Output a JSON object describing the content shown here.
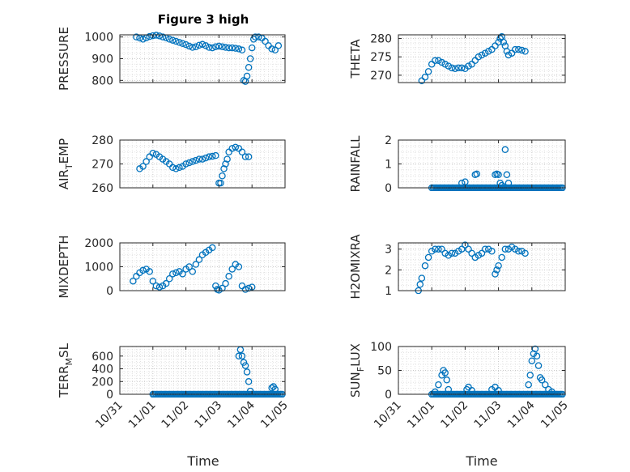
{
  "chart_data": {
    "type": "scatter",
    "title": "Figure 3 high",
    "xlabel": "Time",
    "x_ticks": [
      "10/31",
      "11/01",
      "11/02",
      "11/03",
      "11/04",
      "11/05"
    ],
    "xlim": [
      "10/31",
      "11/05"
    ],
    "grid": "major+minor dotted",
    "marker": "open circle",
    "color": "#0072BD",
    "panels": [
      {
        "id": "pressure",
        "ylabel": "PRESSURE",
        "ylabel_sub": "",
        "ylim": [
          790,
          1010
        ],
        "yticks": [
          800,
          900,
          1000
        ],
        "points": [
          [
            0.5,
            1000
          ],
          [
            0.6,
            995
          ],
          [
            0.7,
            990
          ],
          [
            0.8,
            996
          ],
          [
            0.9,
            1002
          ],
          [
            1.0,
            1006
          ],
          [
            1.1,
            1008
          ],
          [
            1.2,
            1005
          ],
          [
            1.3,
            1000
          ],
          [
            1.4,
            996
          ],
          [
            1.5,
            990
          ],
          [
            1.6,
            985
          ],
          [
            1.7,
            980
          ],
          [
            1.8,
            975
          ],
          [
            1.9,
            970
          ],
          [
            2.0,
            965
          ],
          [
            2.1,
            958
          ],
          [
            2.2,
            952
          ],
          [
            2.3,
            955
          ],
          [
            2.4,
            962
          ],
          [
            2.5,
            966
          ],
          [
            2.6,
            960
          ],
          [
            2.7,
            952
          ],
          [
            2.8,
            950
          ],
          [
            2.9,
            955
          ],
          [
            3.0,
            958
          ],
          [
            3.1,
            955
          ],
          [
            3.2,
            952
          ],
          [
            3.3,
            950
          ],
          [
            3.4,
            950
          ],
          [
            3.5,
            948
          ],
          [
            3.6,
            945
          ],
          [
            3.7,
            940
          ],
          [
            3.75,
            800
          ],
          [
            3.8,
            795
          ],
          [
            3.85,
            820
          ],
          [
            3.9,
            860
          ],
          [
            3.95,
            900
          ],
          [
            4.0,
            950
          ],
          [
            4.05,
            990
          ],
          [
            4.1,
            1000
          ],
          [
            4.2,
            1000
          ],
          [
            4.3,
            995
          ],
          [
            4.4,
            980
          ],
          [
            4.5,
            960
          ],
          [
            4.6,
            945
          ],
          [
            4.7,
            940
          ],
          [
            4.8,
            960
          ]
        ]
      },
      {
        "id": "theta",
        "ylabel": "THETA",
        "ylabel_sub": "",
        "ylim": [
          268,
          281
        ],
        "yticks": [
          270,
          275,
          280
        ],
        "points": [
          [
            0.7,
            268.5
          ],
          [
            0.8,
            269.5
          ],
          [
            0.9,
            271
          ],
          [
            1.0,
            273
          ],
          [
            1.1,
            274
          ],
          [
            1.2,
            274
          ],
          [
            1.3,
            273.5
          ],
          [
            1.4,
            273
          ],
          [
            1.5,
            272.5
          ],
          [
            1.6,
            272
          ],
          [
            1.7,
            271.8
          ],
          [
            1.8,
            272
          ],
          [
            1.9,
            272
          ],
          [
            2.0,
            271.8
          ],
          [
            2.1,
            272.5
          ],
          [
            2.2,
            273
          ],
          [
            2.3,
            274
          ],
          [
            2.4,
            275
          ],
          [
            2.5,
            275.5
          ],
          [
            2.6,
            276
          ],
          [
            2.7,
            276.5
          ],
          [
            2.8,
            277
          ],
          [
            2.9,
            278
          ],
          [
            3.0,
            279
          ],
          [
            3.05,
            280
          ],
          [
            3.1,
            280.5
          ],
          [
            3.15,
            279
          ],
          [
            3.2,
            278
          ],
          [
            3.25,
            276.5
          ],
          [
            3.3,
            275.5
          ],
          [
            3.4,
            276
          ],
          [
            3.5,
            277
          ],
          [
            3.6,
            277
          ],
          [
            3.7,
            276.8
          ],
          [
            3.8,
            276.5
          ]
        ]
      },
      {
        "id": "air_temp",
        "ylabel": "AIR",
        "ylabel_sub": "T",
        "ylabel_rest": "EMP",
        "ylim": [
          260,
          280
        ],
        "yticks": [
          260,
          270,
          280
        ],
        "points": [
          [
            0.6,
            268
          ],
          [
            0.7,
            269
          ],
          [
            0.8,
            271
          ],
          [
            0.9,
            273
          ],
          [
            1.0,
            274.5
          ],
          [
            1.1,
            274
          ],
          [
            1.2,
            273
          ],
          [
            1.3,
            272
          ],
          [
            1.4,
            271
          ],
          [
            1.5,
            270
          ],
          [
            1.6,
            268.5
          ],
          [
            1.7,
            268
          ],
          [
            1.8,
            268.5
          ],
          [
            1.9,
            269
          ],
          [
            2.0,
            270
          ],
          [
            2.1,
            270.5
          ],
          [
            2.2,
            271
          ],
          [
            2.3,
            271.5
          ],
          [
            2.4,
            272
          ],
          [
            2.5,
            272
          ],
          [
            2.6,
            272.5
          ],
          [
            2.7,
            273
          ],
          [
            2.8,
            273.2
          ],
          [
            2.9,
            273.5
          ],
          [
            3.0,
            262
          ],
          [
            3.05,
            262
          ],
          [
            3.1,
            265
          ],
          [
            3.15,
            268
          ],
          [
            3.2,
            270
          ],
          [
            3.25,
            272
          ],
          [
            3.3,
            275
          ],
          [
            3.4,
            276.5
          ],
          [
            3.5,
            277
          ],
          [
            3.6,
            276.5
          ],
          [
            3.7,
            275
          ],
          [
            3.8,
            273
          ],
          [
            3.9,
            273
          ]
        ]
      },
      {
        "id": "rainfall",
        "ylabel": "RAINFALL",
        "ylabel_sub": "",
        "ylim": [
          0,
          2
        ],
        "yticks": [
          0,
          1,
          2
        ],
        "baseline_zero": true,
        "points": [
          [
            1.9,
            0.2
          ],
          [
            2.0,
            0.25
          ],
          [
            2.3,
            0.55
          ],
          [
            2.35,
            0.58
          ],
          [
            2.9,
            0.55
          ],
          [
            2.95,
            0.58
          ],
          [
            3.0,
            0.55
          ],
          [
            3.05,
            0.2
          ],
          [
            3.1,
            0.1
          ],
          [
            3.2,
            1.6
          ],
          [
            3.25,
            0.55
          ],
          [
            3.3,
            0.2
          ]
        ]
      },
      {
        "id": "mixdepth",
        "ylabel": "MIXDEPTH",
        "ylabel_sub": "",
        "ylim": [
          0,
          2000
        ],
        "yticks": [
          0,
          1000,
          2000
        ],
        "points": [
          [
            0.4,
            400
          ],
          [
            0.5,
            600
          ],
          [
            0.6,
            750
          ],
          [
            0.7,
            850
          ],
          [
            0.8,
            900
          ],
          [
            0.9,
            800
          ],
          [
            1.0,
            400
          ],
          [
            1.1,
            200
          ],
          [
            1.2,
            150
          ],
          [
            1.3,
            200
          ],
          [
            1.4,
            300
          ],
          [
            1.5,
            500
          ],
          [
            1.6,
            700
          ],
          [
            1.7,
            750
          ],
          [
            1.8,
            800
          ],
          [
            1.9,
            700
          ],
          [
            2.0,
            900
          ],
          [
            2.1,
            1000
          ],
          [
            2.2,
            800
          ],
          [
            2.3,
            1100
          ],
          [
            2.4,
            1300
          ],
          [
            2.5,
            1500
          ],
          [
            2.6,
            1600
          ],
          [
            2.7,
            1700
          ],
          [
            2.8,
            1800
          ],
          [
            2.9,
            200
          ],
          [
            2.95,
            50
          ],
          [
            3.0,
            20
          ],
          [
            3.1,
            100
          ],
          [
            3.2,
            300
          ],
          [
            3.3,
            600
          ],
          [
            3.4,
            900
          ],
          [
            3.5,
            1100
          ],
          [
            3.6,
            1000
          ],
          [
            3.7,
            200
          ],
          [
            3.8,
            50
          ],
          [
            3.9,
            100
          ],
          [
            4.0,
            150
          ]
        ]
      },
      {
        "id": "h2omixra",
        "ylabel": "H2OMIXRA",
        "ylabel_sub": "",
        "ylim": [
          1,
          3.3
        ],
        "yticks": [
          1,
          2,
          3
        ],
        "points": [
          [
            0.6,
            1.0
          ],
          [
            0.65,
            1.3
          ],
          [
            0.7,
            1.6
          ],
          [
            0.8,
            2.2
          ],
          [
            0.9,
            2.6
          ],
          [
            1.0,
            2.9
          ],
          [
            1.1,
            3.0
          ],
          [
            1.2,
            3.0
          ],
          [
            1.3,
            3.0
          ],
          [
            1.4,
            2.8
          ],
          [
            1.5,
            2.7
          ],
          [
            1.6,
            2.8
          ],
          [
            1.7,
            2.8
          ],
          [
            1.8,
            2.9
          ],
          [
            1.9,
            3.0
          ],
          [
            2.0,
            3.2
          ],
          [
            2.1,
            3.0
          ],
          [
            2.2,
            2.8
          ],
          [
            2.3,
            2.6
          ],
          [
            2.4,
            2.7
          ],
          [
            2.5,
            2.8
          ],
          [
            2.6,
            3.0
          ],
          [
            2.7,
            3.0
          ],
          [
            2.8,
            2.9
          ],
          [
            2.9,
            1.8
          ],
          [
            2.95,
            2.0
          ],
          [
            3.0,
            2.2
          ],
          [
            3.1,
            2.6
          ],
          [
            3.2,
            3.0
          ],
          [
            3.3,
            3.0
          ],
          [
            3.4,
            3.1
          ],
          [
            3.5,
            3.0
          ],
          [
            3.6,
            2.9
          ],
          [
            3.7,
            2.9
          ],
          [
            3.8,
            2.8
          ]
        ]
      },
      {
        "id": "terr_msl",
        "ylabel": "TERR",
        "ylabel_sub": "M",
        "ylabel_rest": "SL",
        "ylim": [
          0,
          750
        ],
        "yticks": [
          0,
          200,
          400,
          600
        ],
        "baseline_zero": true,
        "points": [
          [
            3.6,
            600
          ],
          [
            3.65,
            700
          ],
          [
            3.7,
            600
          ],
          [
            3.75,
            500
          ],
          [
            3.8,
            450
          ],
          [
            3.85,
            350
          ],
          [
            3.9,
            200
          ],
          [
            3.95,
            50
          ],
          [
            4.6,
            100
          ],
          [
            4.65,
            120
          ],
          [
            4.7,
            80
          ]
        ]
      },
      {
        "id": "sun_flux",
        "ylabel": "SUN",
        "ylabel_sub": "F",
        "ylabel_rest": "LUX",
        "ylim": [
          0,
          100
        ],
        "yticks": [
          0,
          50,
          100
        ],
        "baseline_zero": true,
        "points": [
          [
            1.1,
            5
          ],
          [
            1.2,
            20
          ],
          [
            1.3,
            40
          ],
          [
            1.35,
            50
          ],
          [
            1.4,
            45
          ],
          [
            1.45,
            30
          ],
          [
            1.5,
            10
          ],
          [
            2.05,
            10
          ],
          [
            2.1,
            15
          ],
          [
            2.2,
            8
          ],
          [
            2.8,
            10
          ],
          [
            2.9,
            15
          ],
          [
            3.0,
            8
          ],
          [
            3.9,
            20
          ],
          [
            3.95,
            40
          ],
          [
            4.0,
            70
          ],
          [
            4.05,
            85
          ],
          [
            4.1,
            95
          ],
          [
            4.15,
            80
          ],
          [
            4.2,
            60
          ],
          [
            4.25,
            35
          ],
          [
            4.3,
            30
          ],
          [
            4.4,
            20
          ],
          [
            4.5,
            10
          ],
          [
            4.6,
            5
          ]
        ]
      }
    ]
  }
}
